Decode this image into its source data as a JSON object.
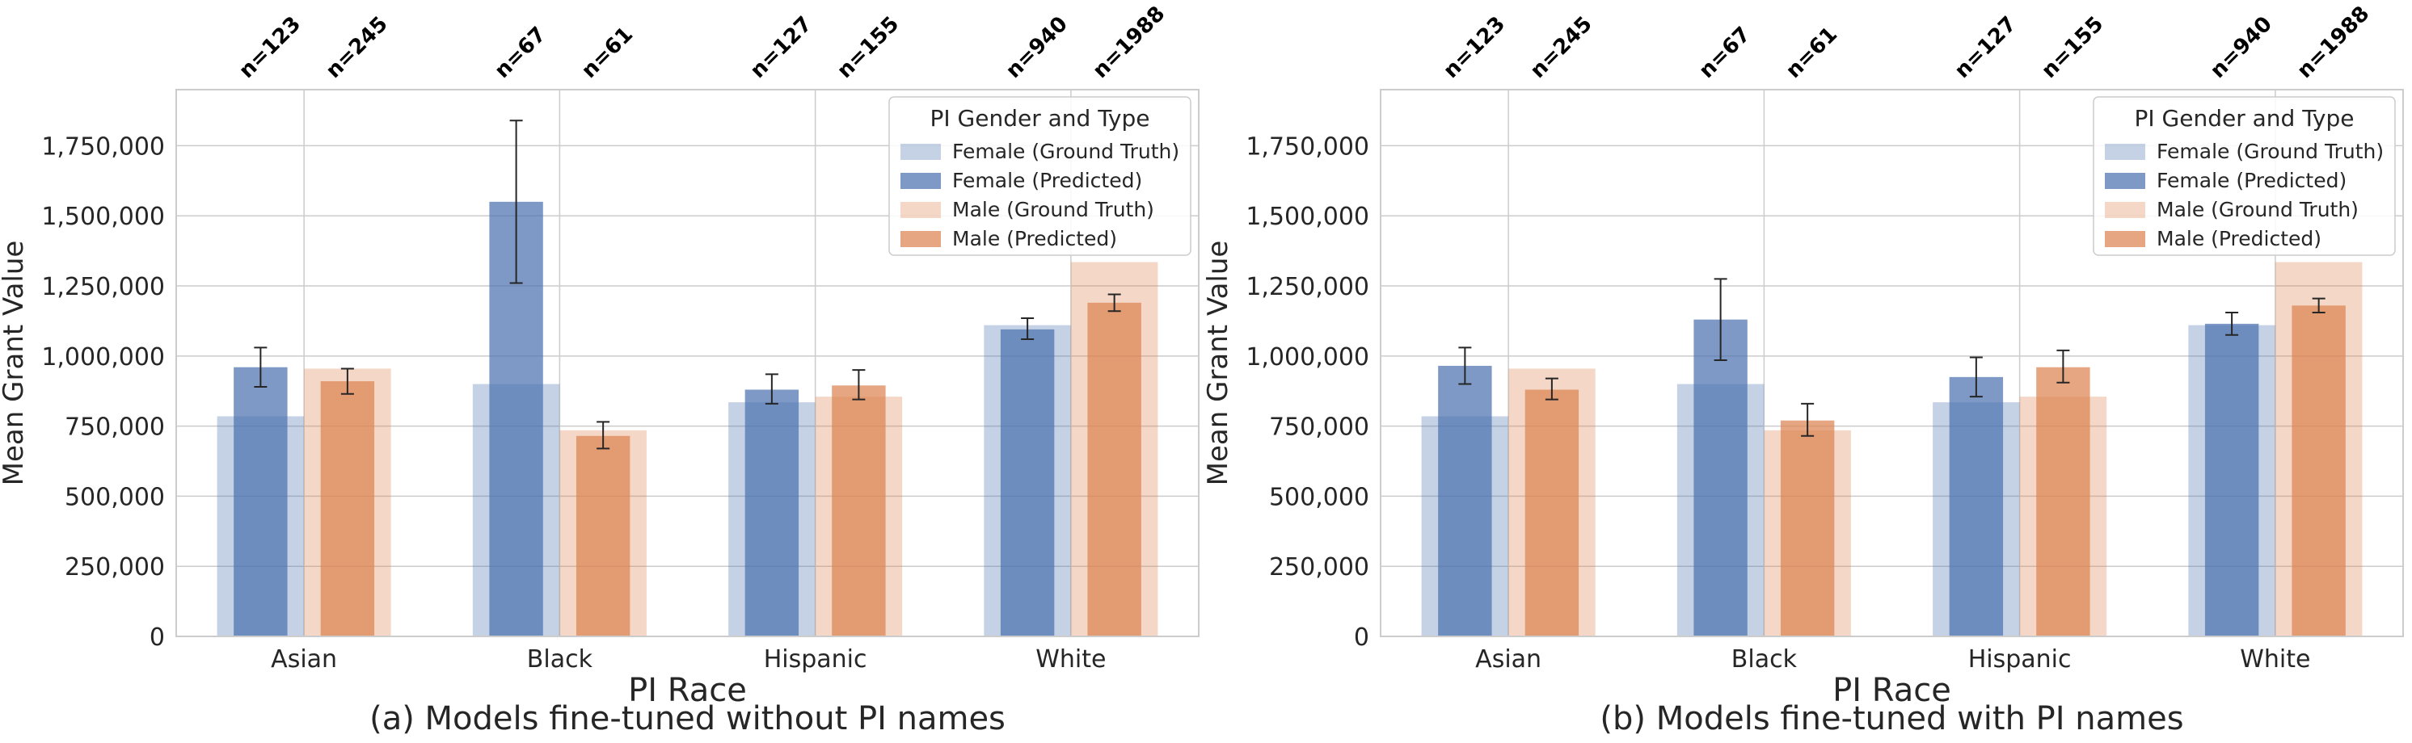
{
  "colors": {
    "female_gt": "#4c72b0",
    "female_pred": "#4c72b0",
    "male_gt": "#dd8452",
    "male_pred": "#dd8452",
    "grid": "#cccccc",
    "errorbar": "#262626"
  },
  "chart_data": [
    {
      "type": "bar",
      "caption": "(a) Models fine-tuned without PI names",
      "xlabel": "PI Race",
      "ylabel": "Mean Grant Value",
      "ylim": [
        0,
        1950000
      ],
      "yticks": [
        0,
        250000,
        500000,
        750000,
        1000000,
        1250000,
        1500000,
        1750000
      ],
      "ytick_labels": [
        "0",
        "250,000",
        "500,000",
        "750,000",
        "1,000,000",
        "1,250,000",
        "1,500,000",
        "1,750,000"
      ],
      "categories": [
        "Asian",
        "Black",
        "Hispanic",
        "White"
      ],
      "grid": true,
      "legend": {
        "title": "PI Gender and Type",
        "placement": "top-right",
        "entries": [
          "Female (Ground Truth)",
          "Female (Predicted)",
          "Male (Ground Truth)",
          "Male (Predicted)"
        ]
      },
      "counts": {
        "female": [
          "n=123",
          "n=67",
          "n=127",
          "n=940"
        ],
        "male": [
          "n=245",
          "n=61",
          "n=155",
          "n=1988"
        ]
      },
      "series": [
        {
          "name": "Female (Ground Truth)",
          "values": [
            785000,
            900000,
            835000,
            1110000
          ]
        },
        {
          "name": "Female (Predicted)",
          "values": [
            960000,
            1550000,
            880000,
            1095000
          ],
          "error_low": [
            890000,
            1260000,
            830000,
            1060000
          ],
          "error_high": [
            1030000,
            1840000,
            935000,
            1135000
          ]
        },
        {
          "name": "Male (Ground Truth)",
          "values": [
            955000,
            735000,
            855000,
            1335000
          ]
        },
        {
          "name": "Male (Predicted)",
          "values": [
            910000,
            715000,
            895000,
            1190000
          ],
          "error_low": [
            865000,
            670000,
            845000,
            1160000
          ],
          "error_high": [
            955000,
            765000,
            950000,
            1220000
          ]
        }
      ]
    },
    {
      "type": "bar",
      "caption": "(b) Models fine-tuned with PI names",
      "xlabel": "PI Race",
      "ylabel": "Mean Grant Value",
      "ylim": [
        0,
        1950000
      ],
      "yticks": [
        0,
        250000,
        500000,
        750000,
        1000000,
        1250000,
        1500000,
        1750000
      ],
      "ytick_labels": [
        "0",
        "250,000",
        "500,000",
        "750,000",
        "1,000,000",
        "1,250,000",
        "1,500,000",
        "1,750,000"
      ],
      "categories": [
        "Asian",
        "Black",
        "Hispanic",
        "White"
      ],
      "grid": true,
      "legend": {
        "title": "PI Gender and Type",
        "placement": "top-right",
        "entries": [
          "Female (Ground Truth)",
          "Female (Predicted)",
          "Male (Ground Truth)",
          "Male (Predicted)"
        ]
      },
      "counts": {
        "female": [
          "n=123",
          "n=67",
          "n=127",
          "n=940"
        ],
        "male": [
          "n=245",
          "n=61",
          "n=155",
          "n=1988"
        ]
      },
      "series": [
        {
          "name": "Female (Ground Truth)",
          "values": [
            785000,
            900000,
            835000,
            1110000
          ]
        },
        {
          "name": "Female (Predicted)",
          "values": [
            965000,
            1130000,
            925000,
            1115000
          ],
          "error_low": [
            900000,
            985000,
            855000,
            1075000
          ],
          "error_high": [
            1030000,
            1275000,
            995000,
            1155000
          ]
        },
        {
          "name": "Male (Ground Truth)",
          "values": [
            955000,
            735000,
            855000,
            1335000
          ]
        },
        {
          "name": "Male (Predicted)",
          "values": [
            880000,
            770000,
            960000,
            1180000
          ],
          "error_low": [
            845000,
            715000,
            905000,
            1155000
          ],
          "error_high": [
            920000,
            830000,
            1020000,
            1205000
          ]
        }
      ]
    }
  ]
}
